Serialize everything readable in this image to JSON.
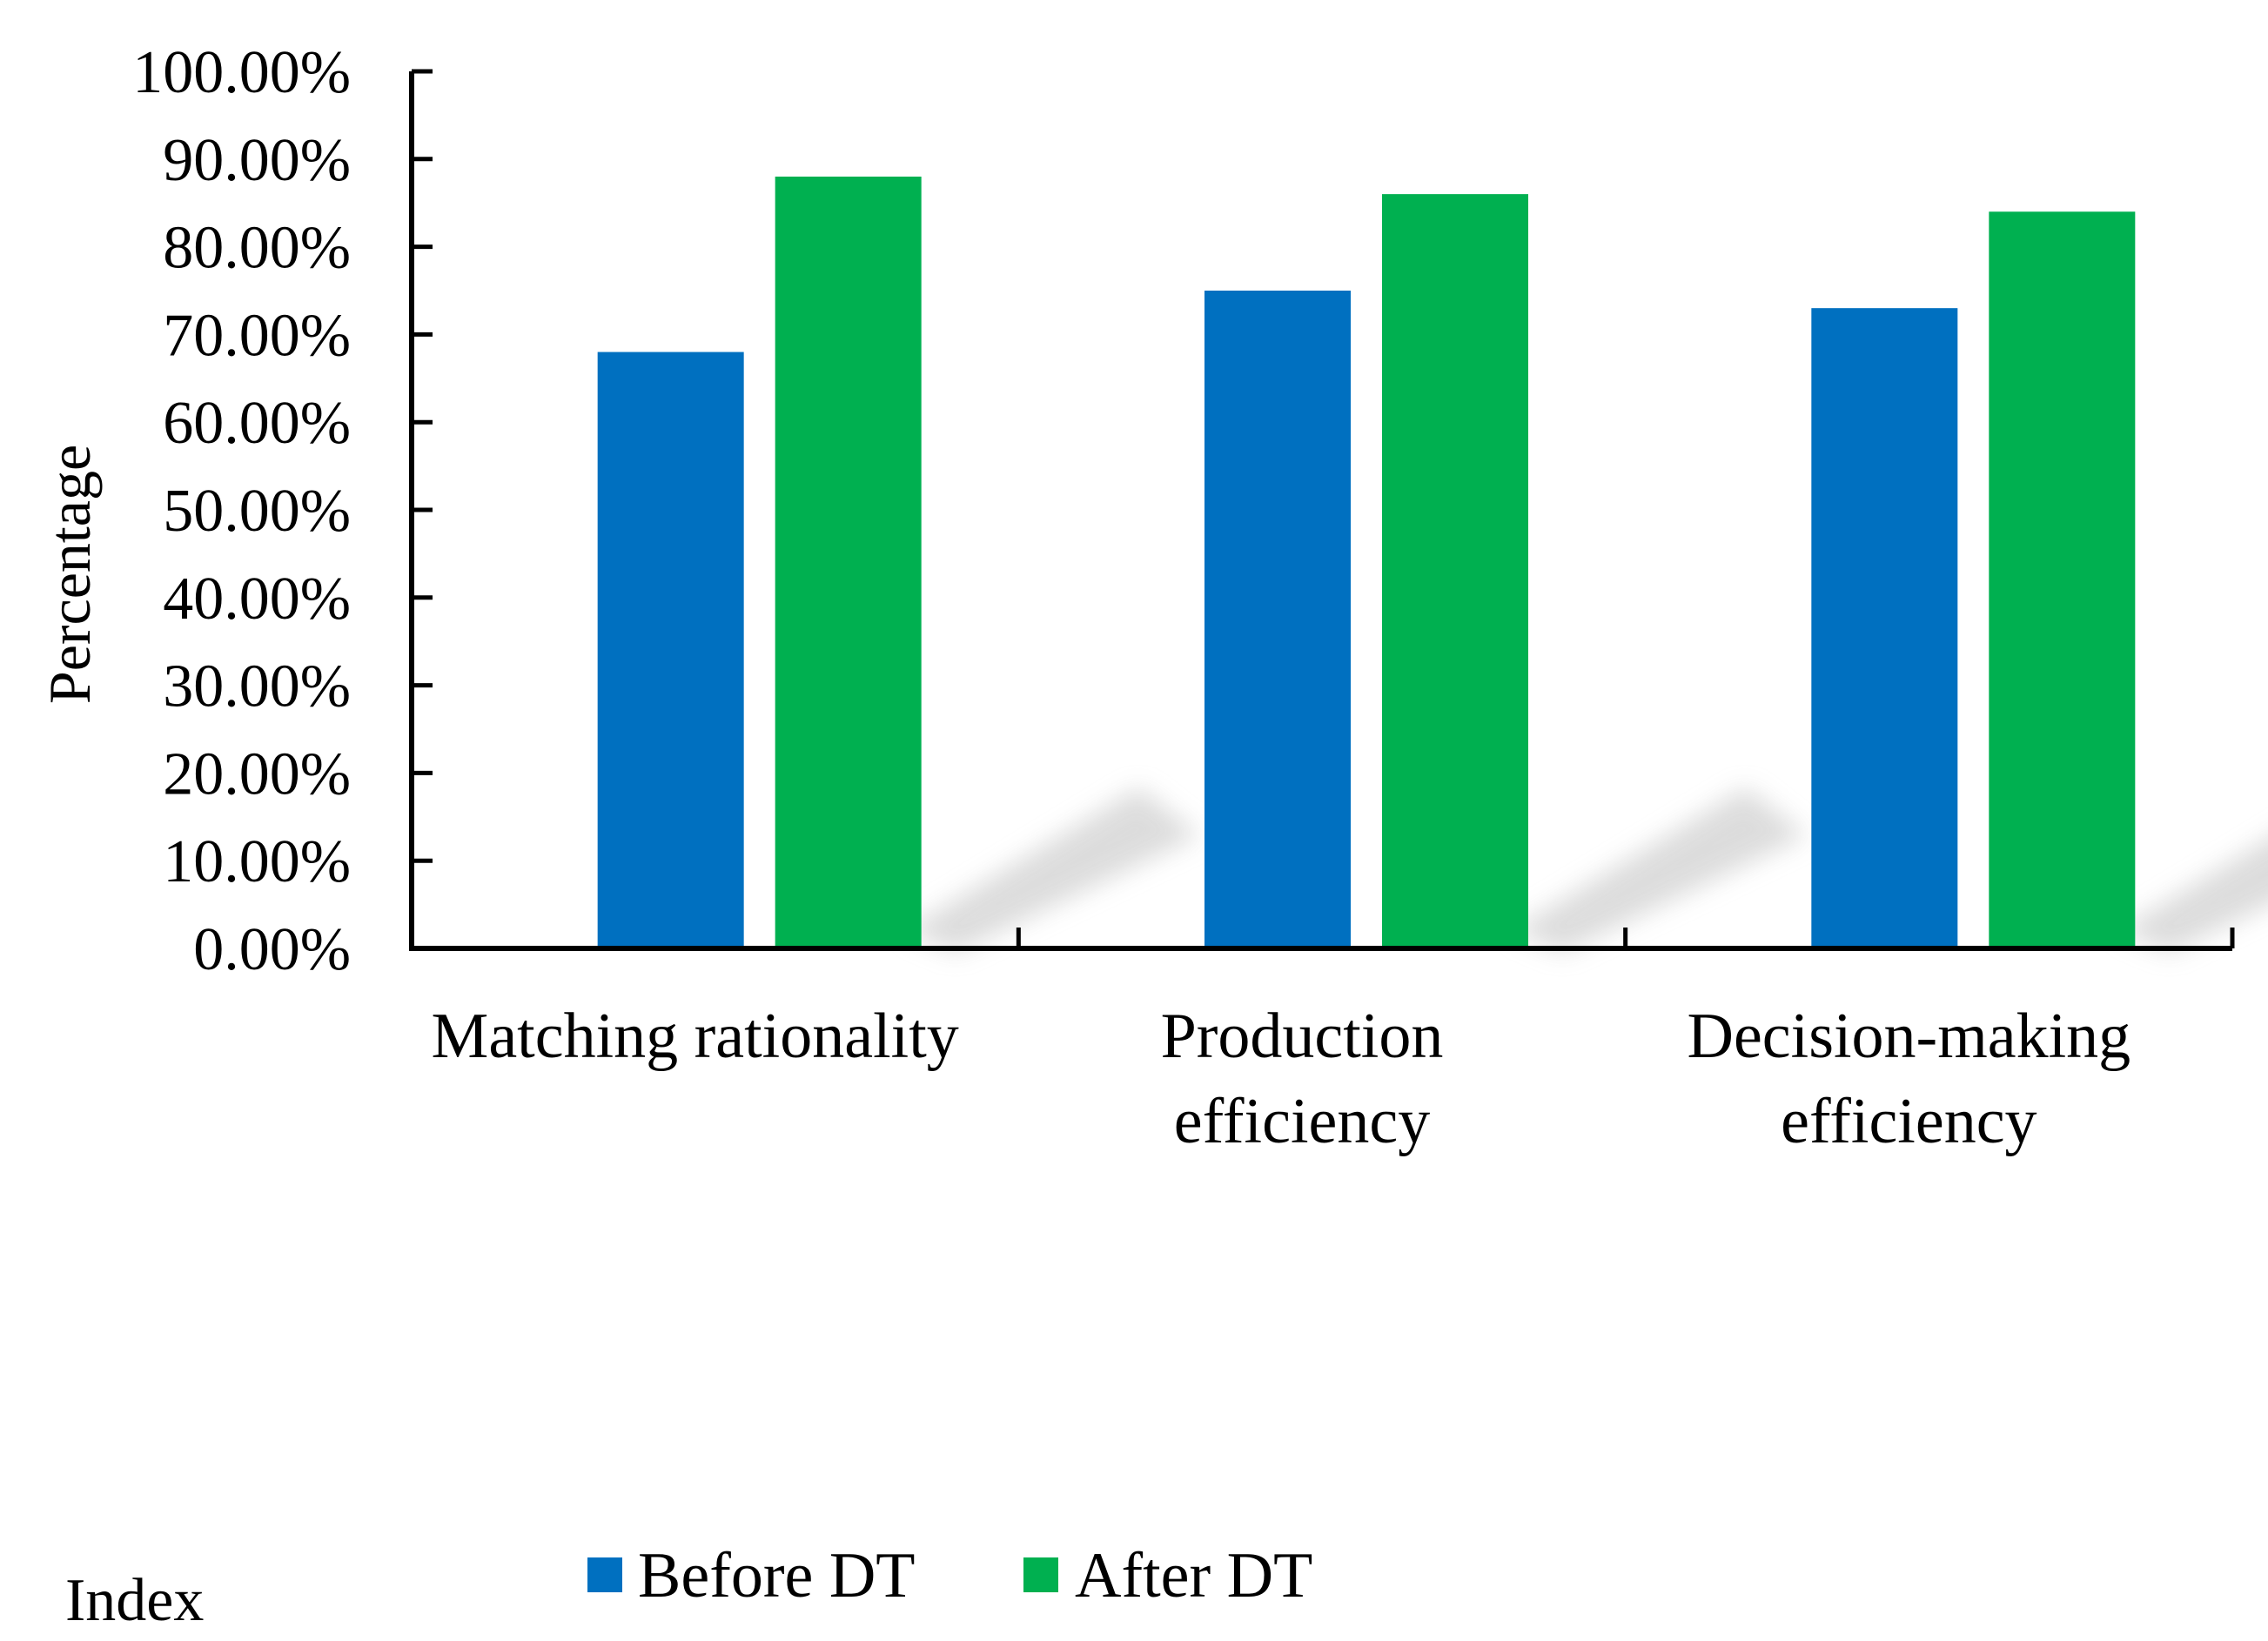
{
  "chart_data": {
    "type": "bar",
    "title": "",
    "xlabel": "Index",
    "ylabel": "Percentage",
    "categories": [
      [
        "Matching rationality"
      ],
      [
        "Production",
        "efficiency"
      ],
      [
        "Decision-making",
        "efficiency"
      ]
    ],
    "series": [
      {
        "name": "Before DT",
        "values": [
          68,
          75,
          73
        ]
      },
      {
        "name": "After DT",
        "values": [
          88,
          86,
          84
        ]
      }
    ],
    "ylim": [
      0,
      100
    ],
    "yticks": [
      0,
      10,
      20,
      30,
      40,
      50,
      60,
      70,
      80,
      90,
      100
    ],
    "ytick_labels": [
      "0.00%",
      "10.00%",
      "20.00%",
      "30.00%",
      "40.00%",
      "50.00%",
      "60.00%",
      "70.00%",
      "80.00%",
      "90.00%",
      "100.00%"
    ],
    "grid": false,
    "legend_position": "bottom-center",
    "colors": {
      "Before DT": "#0070C0",
      "After DT": "#00B050",
      "axis": "#000000",
      "shadow": "#d9d9d9"
    }
  }
}
